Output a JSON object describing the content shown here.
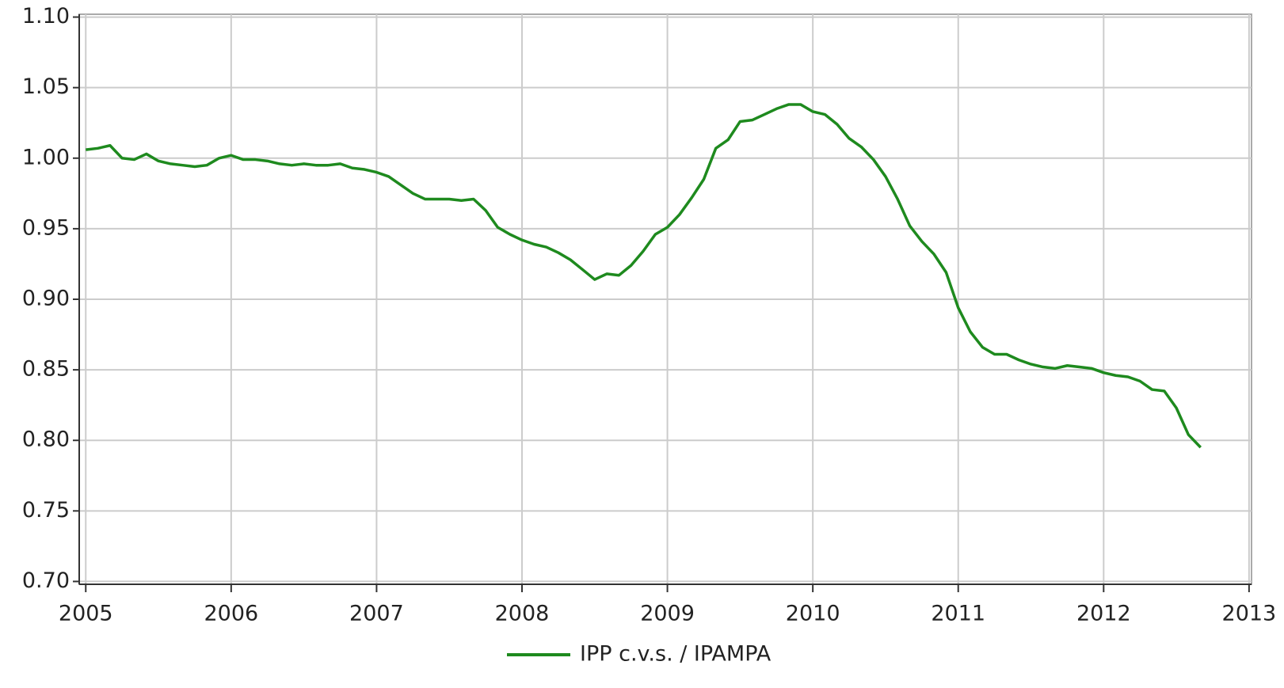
{
  "chart_data": {
    "type": "line",
    "x": [
      2005,
      2005.083,
      2005.167,
      2005.25,
      2005.333,
      2005.417,
      2005.5,
      2005.583,
      2005.667,
      2005.75,
      2005.833,
      2005.917,
      2006,
      2006.083,
      2006.167,
      2006.25,
      2006.333,
      2006.417,
      2006.5,
      2006.583,
      2006.667,
      2006.75,
      2006.833,
      2006.917,
      2007,
      2007.083,
      2007.167,
      2007.25,
      2007.333,
      2007.417,
      2007.5,
      2007.583,
      2007.667,
      2007.75,
      2007.833,
      2007.917,
      2008,
      2008.083,
      2008.167,
      2008.25,
      2008.333,
      2008.417,
      2008.5,
      2008.583,
      2008.667,
      2008.75,
      2008.833,
      2008.917,
      2009,
      2009.083,
      2009.167,
      2009.25,
      2009.333,
      2009.417,
      2009.5,
      2009.583,
      2009.667,
      2009.75,
      2009.833,
      2009.917,
      2010,
      2010.083,
      2010.167,
      2010.25,
      2010.333,
      2010.417,
      2010.5,
      2010.583,
      2010.667,
      2010.75,
      2010.833,
      2010.917,
      2011,
      2011.083,
      2011.167,
      2011.25,
      2011.333,
      2011.417,
      2011.5,
      2011.583,
      2011.667,
      2011.75,
      2011.833,
      2011.917,
      2012,
      2012.083,
      2012.167,
      2012.25,
      2012.333,
      2012.417,
      2012.5,
      2012.583,
      2012.667
    ],
    "series": [
      {
        "name": "IPP c.v.s. / IPAMPA",
        "color": "#1e8a1e",
        "values": [
          1.006,
          1.007,
          1.009,
          1.0,
          0.999,
          1.003,
          0.998,
          0.996,
          0.995,
          0.994,
          0.995,
          1.0,
          1.002,
          0.999,
          0.999,
          0.998,
          0.996,
          0.995,
          0.996,
          0.995,
          0.995,
          0.996,
          0.993,
          0.992,
          0.99,
          0.987,
          0.981,
          0.975,
          0.971,
          0.971,
          0.971,
          0.97,
          0.971,
          0.963,
          0.951,
          0.946,
          0.942,
          0.939,
          0.937,
          0.933,
          0.928,
          0.921,
          0.914,
          0.918,
          0.917,
          0.924,
          0.934,
          0.946,
          0.951,
          0.96,
          0.972,
          0.985,
          1.007,
          1.013,
          1.026,
          1.027,
          1.031,
          1.035,
          1.038,
          1.038,
          1.033,
          1.031,
          1.024,
          1.014,
          1.008,
          0.999,
          0.987,
          0.971,
          0.952,
          0.941,
          0.932,
          0.919,
          0.894,
          0.877,
          0.866,
          0.861,
          0.861,
          0.857,
          0.854,
          0.852,
          0.851,
          0.853,
          0.852,
          0.851,
          0.848,
          0.846,
          0.845,
          0.842,
          0.836,
          0.835,
          0.823,
          0.804,
          0.795
        ]
      }
    ],
    "xlim": [
      2004.955,
      2013.017
    ],
    "xticks": [
      2005,
      2006,
      2007,
      2008,
      2009,
      2010,
      2011,
      2012,
      2013
    ],
    "ylim": [
      0.698,
      1.102
    ],
    "yticks": [
      {
        "value": 0.7,
        "label": "0.70"
      },
      0.75,
      {
        "value": 0.8,
        "label": "0.80"
      },
      0.85,
      {
        "value": 0.9,
        "label": "0.90"
      },
      0.95,
      {
        "value": 1.0,
        "label": "1.00"
      },
      1.05,
      {
        "value": 1.1,
        "label": "1.10"
      }
    ],
    "grid": true,
    "legend": "bottom"
  }
}
